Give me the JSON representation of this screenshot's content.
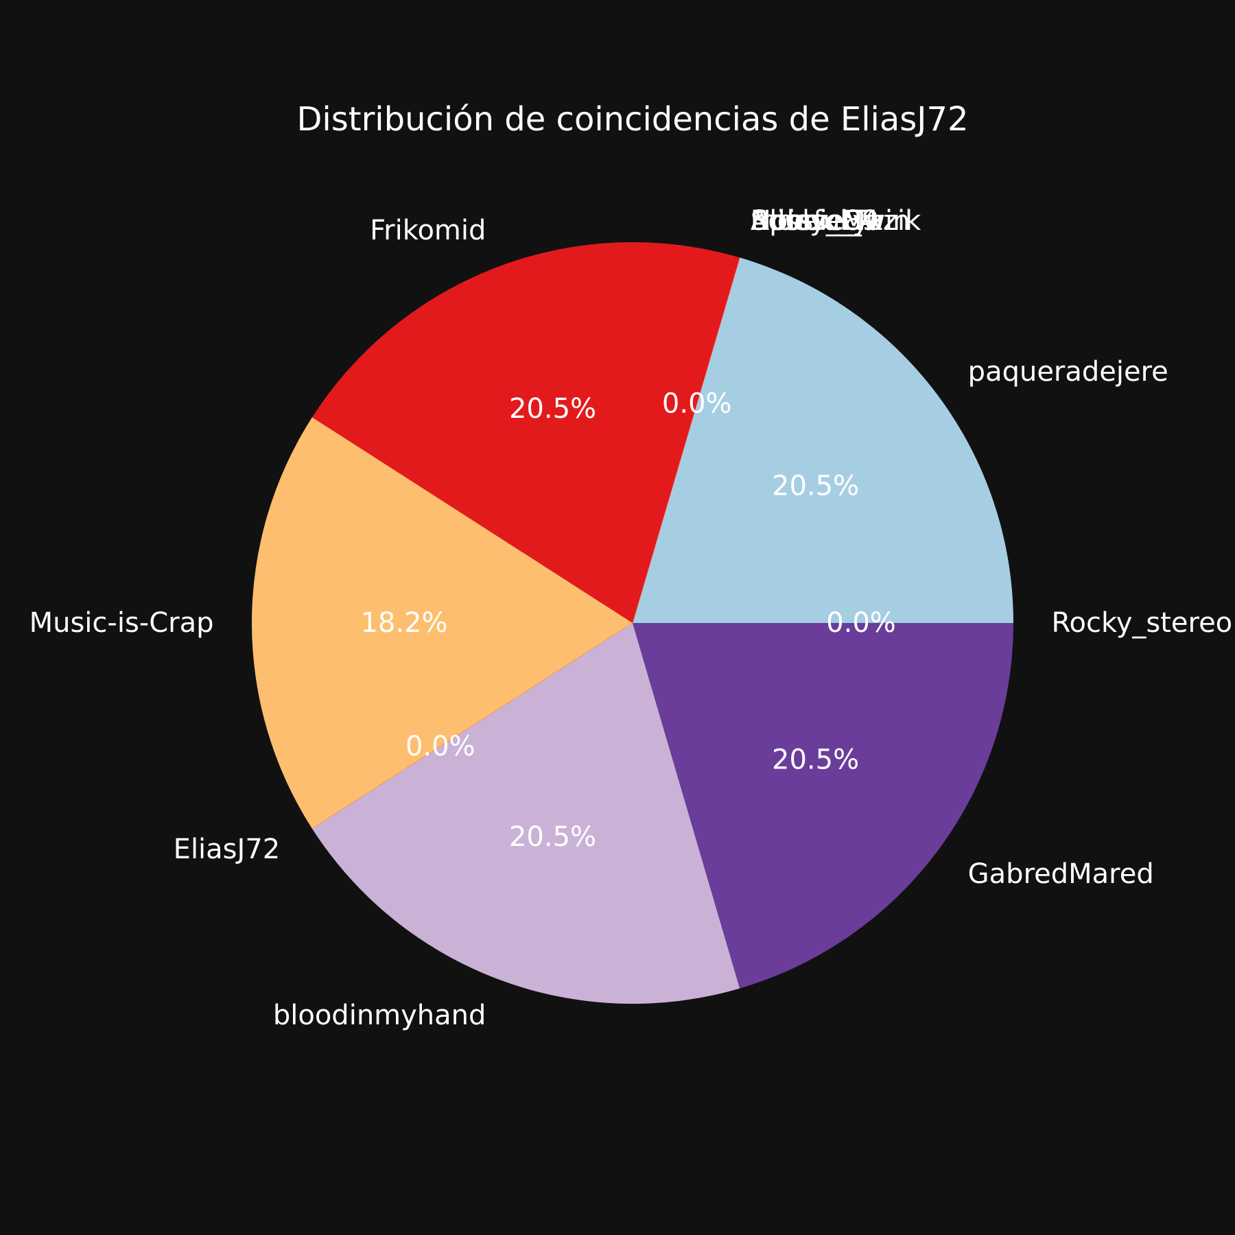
{
  "chart_data": {
    "type": "pie",
    "title": "Distribución de coincidencias de EliasJ72",
    "start_angle_deg": 0,
    "direction": "counterclockwise",
    "legend": "none",
    "slices": [
      {
        "label": "Rocky_stereo",
        "percent": 0.0,
        "pct_label": "0.0%",
        "color": "#a6cee3"
      },
      {
        "label": "paqueradejere",
        "percent": 20.5,
        "pct_label": "20.5%",
        "color": "#a6cee3"
      },
      {
        "label": "Sdobie84",
        "percent": 0.0,
        "pct_label": "",
        "color": "#1f78b4"
      },
      {
        "label": "Aphex_Twin",
        "percent": 0.0,
        "pct_label": "",
        "color": "#b2df8a"
      },
      {
        "label": "Blissful_9",
        "percent": 0.0,
        "pct_label": "",
        "color": "#33a02c"
      },
      {
        "label": "mooseMuzik",
        "percent": 0.0,
        "pct_label": "",
        "color": "#fb9a99"
      },
      {
        "label": "Noisy_Lyz",
        "percent": 0.0,
        "pct_label": "0.0%",
        "color": "#fb9a99"
      },
      {
        "label": "Frikomid",
        "percent": 20.5,
        "pct_label": "20.5%",
        "color": "#e31a1c"
      },
      {
        "label": "Music-is-Crap",
        "percent": 18.2,
        "pct_label": "18.2%",
        "color": "#fdbf6f"
      },
      {
        "label": "EliasJ72",
        "percent": 0.0,
        "pct_label": "0.0%",
        "color": "#ff7f00"
      },
      {
        "label": "bloodinmyhand",
        "percent": 20.5,
        "pct_label": "20.5%",
        "color": "#cab2d6"
      },
      {
        "label": "GabredMared",
        "percent": 20.5,
        "pct_label": "20.5%",
        "color": "#6a3d9a"
      }
    ]
  }
}
